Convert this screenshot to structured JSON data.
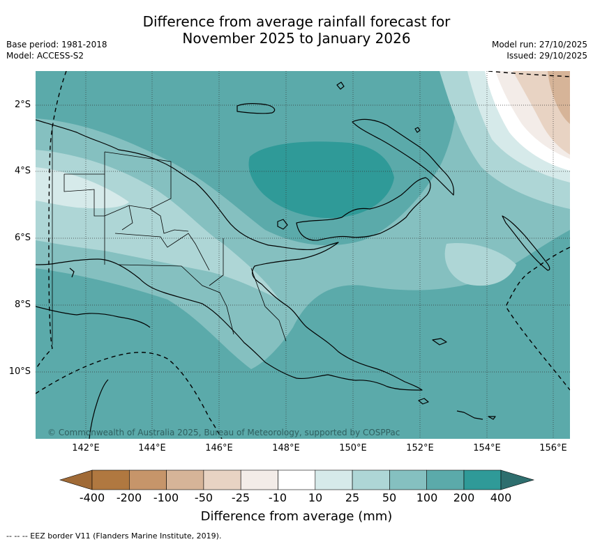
{
  "header": {
    "title_line1": "Difference from average rainfall forecast for",
    "title_line2": "November 2025 to January 2026",
    "base_period": "Base period: 1981-2018",
    "model": "Model: ACCESS-S2",
    "model_run": "Model run: 27/10/2025",
    "issued": "Issued: 29/10/2025"
  },
  "map": {
    "region": "Papua New Guinea",
    "lat_labels": [
      "2°S",
      "4°S",
      "6°S",
      "8°S",
      "10°S"
    ],
    "lon_labels": [
      "142°E",
      "144°E",
      "146°E",
      "148°E",
      "150°E",
      "152°E",
      "154°E",
      "156°E"
    ],
    "copyright": "© Commonwealth of Australia 2025, Bureau of Meteorology, supported by COSPPac",
    "colors": {
      "c_minus400": "#a06a36",
      "c_minus200": "#b07840",
      "c_minus100": "#c6956a",
      "c_minus50": "#d6b498",
      "c_minus25": "#e8d3c3",
      "c_minus10": "#f3ece8",
      "c_zero": "#ffffff",
      "c_10": "#d6eaea",
      "c_25": "#aed6d6",
      "c_50": "#85c0c0",
      "c_100": "#5baaaa",
      "c_200": "#2f9a98",
      "c_400": "#2e6e6e"
    }
  },
  "colorbar": {
    "ticks": [
      "-400",
      "-200",
      "-100",
      "-50",
      "-25",
      "-10",
      "10",
      "25",
      "50",
      "100",
      "200",
      "400"
    ],
    "title": "Difference from average (mm)"
  },
  "footnote": "--  --  -- EEZ border V11 (Flanders Marine Institute, 2019)."
}
